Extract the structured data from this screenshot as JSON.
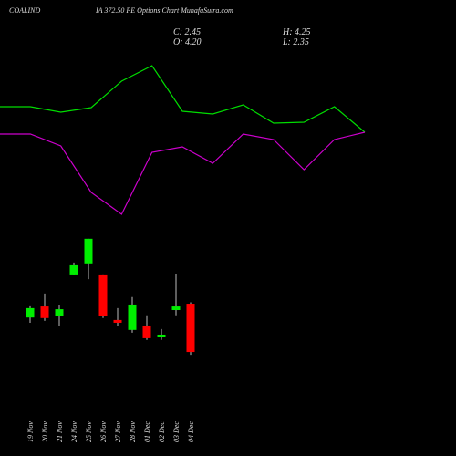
{
  "chart_data": [
    {
      "type": "line",
      "title_left": "COALIND",
      "title": "IA 372.50  PE Options Chart MunafaSutra.com",
      "ylim": [
        0,
        100
      ],
      "series": [
        {
          "color": "#00dd00",
          "values": [
            61.2,
            61.2,
            58.8,
            60.8,
            72.4,
            79.2,
            59.2,
            58,
            62,
            54,
            54.4,
            61.2,
            50
          ]
        },
        {
          "color": "#cc00cc",
          "values": [
            49.2,
            49.2,
            44,
            23.6,
            14,
            41.2,
            43.6,
            36.4,
            49.2,
            46.8,
            33.6,
            46.8,
            50
          ]
        }
      ]
    },
    {
      "type": "candlestick",
      "ohlc_labels": {
        "close": "C: 2.45",
        "open": "O: 4.20",
        "high": "H: 4.25",
        "low": "L: 2.35"
      },
      "categories": [
        "19 Nov",
        "20 Nov",
        "21 Nov",
        "24 Nov",
        "25 Nov",
        "26 Nov",
        "27 Nov",
        "28 Nov",
        "01 Dec",
        "02 Dec",
        "03 Dec",
        "04 Dec"
      ],
      "open": [
        3.7,
        4.1,
        3.77,
        5.26,
        5.66,
        5.26,
        3.61,
        3.25,
        3.41,
        2.98,
        3.97,
        4.2
      ],
      "high": [
        4.14,
        4.57,
        4.17,
        5.69,
        6.55,
        5.26,
        4.04,
        4.44,
        3.78,
        3.28,
        5.29,
        4.25
      ],
      "low": [
        3.51,
        3.58,
        3.38,
        5.23,
        5.09,
        3.68,
        3.41,
        3.15,
        2.89,
        2.89,
        3.78,
        2.35
      ],
      "close": [
        4.04,
        3.68,
        4.0,
        5.59,
        6.55,
        3.74,
        3.51,
        4.17,
        2.95,
        3.08,
        4.1,
        2.45
      ],
      "up_color": "#00ee00",
      "down_color": "#ff0000",
      "ylim": [
        0,
        7
      ]
    }
  ]
}
